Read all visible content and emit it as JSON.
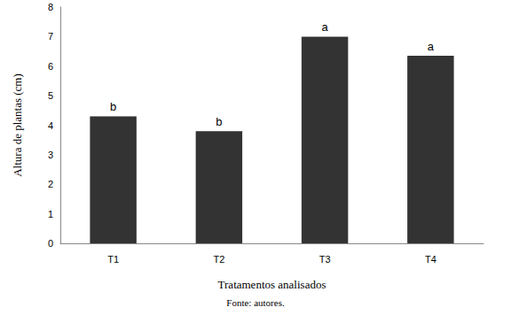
{
  "chart_data": {
    "type": "bar",
    "categories": [
      "T1",
      "T2",
      "T3",
      "T4"
    ],
    "values": [
      4.3,
      3.8,
      7.0,
      6.35
    ],
    "annotations": [
      "b",
      "b",
      "a",
      "a"
    ],
    "color": "#333333",
    "ylabel": "Altura de plantas (cm)",
    "xlabel": "Tratamentos analisados",
    "source": "Fonte: autores.",
    "ylim": [
      0,
      8
    ],
    "yticks": [
      0,
      1,
      2,
      3,
      4,
      5,
      6,
      7,
      8
    ],
    "grid": false
  }
}
